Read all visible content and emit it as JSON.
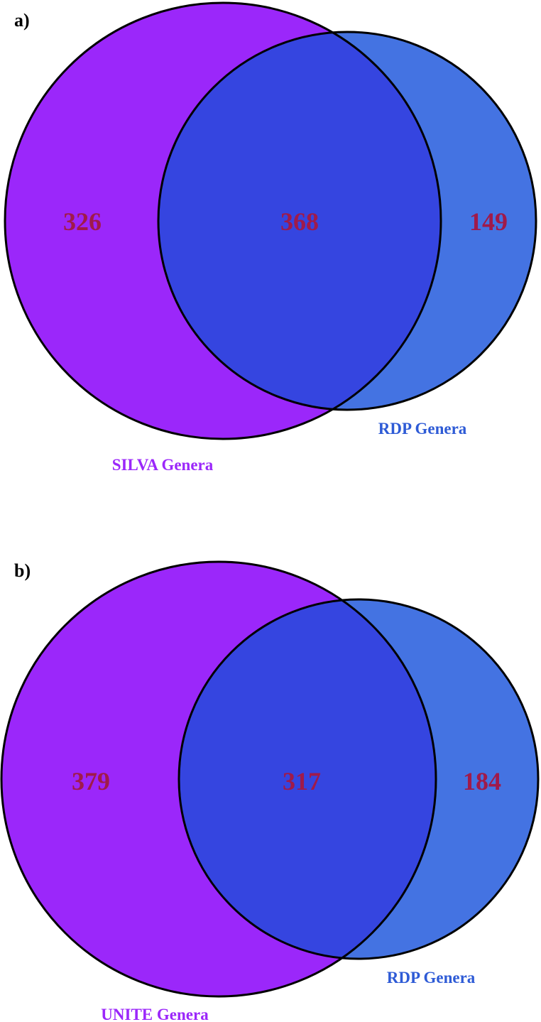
{
  "diagrams": [
    {
      "panel": "a)",
      "set_a": {
        "label": "SILVA Genera",
        "only": "326",
        "color": "#9b27fa"
      },
      "set_b": {
        "label": "RDP Genera",
        "only": "149",
        "color": "#4473e2"
      },
      "intersection": {
        "value": "368",
        "color": "#3545e0"
      }
    },
    {
      "panel": "b)",
      "set_a": {
        "label": "UNITE Genera",
        "only": "379",
        "color": "#9b27fa"
      },
      "set_b": {
        "label": "RDP Genera",
        "only": "184",
        "color": "#4473e2"
      },
      "intersection": {
        "value": "317",
        "color": "#3545e0"
      }
    }
  ],
  "colors": {
    "count_text": "#a01a4a",
    "set_a_label": "#9b27fa",
    "set_b_label": "#2e5bd6",
    "outline": "#000000"
  }
}
